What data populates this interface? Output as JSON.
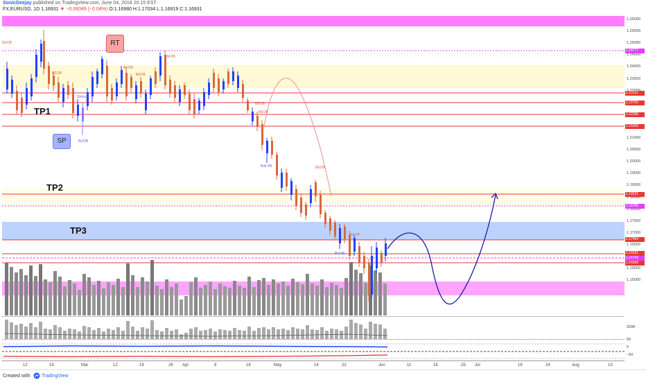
{
  "header": {
    "author": "SonicDeejay",
    "publish_text": "published on TradingView.com, June 04, 2018 20:15 EST",
    "symbol": "FX:EURUSD, 1D",
    "price": "1.16931",
    "change": "▼ −0.00049 (−0.04%)",
    "ohlc": "O:1.16980 H:1.17034 L:1.16919 C:1.16931"
  },
  "labels": {
    "tp1": "TP1",
    "tp2": "TP2",
    "tp3": "TP3",
    "sp": "SP",
    "rt": "RT",
    "beob": "BEOB",
    "buob": "BUOB",
    "bull_pb": "Bull PB",
    "strong": "Strong"
  },
  "price_axis": {
    "ticks": [
      "1.26000",
      "1.25500",
      "1.25000",
      "1.24500",
      "1.24000",
      "1.23500",
      "1.23000",
      "1.22500",
      "1.22000",
      "1.21500",
      "1.21000",
      "1.20500",
      "1.20000",
      "1.19500",
      "1.19000",
      "1.18500",
      "1.18000",
      "1.17500",
      "1.17000",
      "1.16500",
      "1.16000",
      "1.15500",
      "1.15000"
    ],
    "badges": [
      {
        "text": "1.24777",
        "color": "#e040fb"
      },
      {
        "text": "1.23112",
        "color": "#e53935"
      },
      {
        "text": "1.22753",
        "color": "#e53935"
      },
      {
        "text": "1.22280",
        "color": "#e53935"
      },
      {
        "text": "1.21835",
        "color": "#e53935"
      },
      {
        "text": "1.19221",
        "color": "#e53935"
      },
      {
        "text": "1.18785",
        "color": "#e040fb"
      },
      {
        "text": "1.17464",
        "color": "#e53935"
      },
      {
        "text": "1.16931",
        "color": "#e53935"
      },
      {
        "text": "1.16704",
        "color": "#e040fb"
      },
      {
        "text": "1.16536",
        "color": "#e53935"
      }
    ],
    "vol_tick": "200K",
    "osc_ticks": [
      "50",
      "0",
      "−50"
    ]
  },
  "time_axis": {
    "labels": [
      "12",
      "19",
      "Mar",
      "12",
      "19",
      "26",
      "Apr",
      "9",
      "16",
      "May",
      "14",
      "22",
      "Jun",
      "11",
      "18",
      "25",
      "Jul",
      "16",
      "24",
      "Aug",
      "13"
    ]
  },
  "footer": {
    "created_with": "Created with",
    "brand": "TradingView"
  },
  "colors": {
    "bull": "#1e40ff",
    "bear": "#d9673a",
    "band_pink": "#ff7dff",
    "band_yellow": "#fffbe0",
    "band_blue": "#bcd3ff",
    "red_line": "#e53935",
    "projection": "#1a1aa8"
  }
}
